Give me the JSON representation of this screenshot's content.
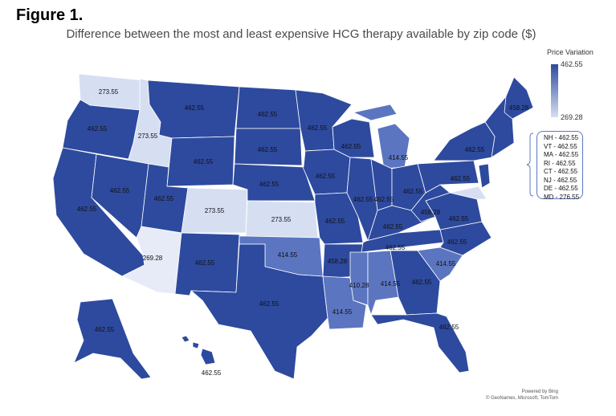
{
  "figure_label": "Figure 1.",
  "title": "Difference between the most and least expensive HCG therapy available by zip code ($)",
  "legend": {
    "title": "Price Variation",
    "max_label": "462.55",
    "min_label": "269.28",
    "color_max": "#2e4a9e",
    "color_mid": "#5b75c0",
    "color_min": "#d6def2"
  },
  "northeast_callouts": [
    "NH - 462.55",
    "VT - 462.55",
    "MA - 462.55",
    "RI - 462.55",
    "CT - 462.55",
    "NJ - 462.55",
    "DE - 462.55",
    "MD - 276.55"
  ],
  "states": [
    {
      "abbr": "WA",
      "value": 273.55,
      "label": "273.55"
    },
    {
      "abbr": "OR",
      "value": 462.55,
      "label": "462.55"
    },
    {
      "abbr": "CA",
      "value": 462.55,
      "label": "462.55"
    },
    {
      "abbr": "ID",
      "value": 273.55,
      "label": "273.55"
    },
    {
      "abbr": "NV",
      "value": 462.55,
      "label": "462.55"
    },
    {
      "abbr": "UT",
      "value": 462.55,
      "label": "462.55"
    },
    {
      "abbr": "AZ",
      "value": 269.28,
      "label": "269.28"
    },
    {
      "abbr": "MT",
      "value": 462.55,
      "label": "462.55"
    },
    {
      "abbr": "WY",
      "value": 462.55,
      "label": "462.55"
    },
    {
      "abbr": "CO",
      "value": 273.55,
      "label": "273.55"
    },
    {
      "abbr": "NM",
      "value": 462.55,
      "label": "462.55"
    },
    {
      "abbr": "ND",
      "value": 462.55,
      "label": "462.55"
    },
    {
      "abbr": "SD",
      "value": 462.55,
      "label": "462.55"
    },
    {
      "abbr": "NE",
      "value": 462.55,
      "label": "462.55"
    },
    {
      "abbr": "KS",
      "value": 273.55,
      "label": "273.55"
    },
    {
      "abbr": "OK",
      "value": 414.55,
      "label": "414.55"
    },
    {
      "abbr": "TX",
      "value": 462.55,
      "label": "462.55"
    },
    {
      "abbr": "MN",
      "value": 462.55,
      "label": "462.55"
    },
    {
      "abbr": "IA",
      "value": 462.55,
      "label": "462.55"
    },
    {
      "abbr": "MO",
      "value": 462.55,
      "label": "462.55"
    },
    {
      "abbr": "AR",
      "value": 458.28,
      "label": "458.28"
    },
    {
      "abbr": "LA",
      "value": 414.55,
      "label": "414.55"
    },
    {
      "abbr": "WI",
      "value": 462.55,
      "label": "462.55"
    },
    {
      "abbr": "IL",
      "value": 462.55,
      "label": "462.55"
    },
    {
      "abbr": "MI",
      "value": 414.55,
      "label": "414.55"
    },
    {
      "abbr": "IN",
      "value": 462.55,
      "label": "462.55"
    },
    {
      "abbr": "OH",
      "value": 462.55,
      "label": "462.55"
    },
    {
      "abbr": "KY",
      "value": 462.55,
      "label": "462.55"
    },
    {
      "abbr": "TN",
      "value": 462.55,
      "label": "462.55"
    },
    {
      "abbr": "MS",
      "value": 410.28,
      "label": "410.28"
    },
    {
      "abbr": "AL",
      "value": 414.55,
      "label": "414.55"
    },
    {
      "abbr": "GA",
      "value": 462.55,
      "label": "462.55"
    },
    {
      "abbr": "FL",
      "value": 462.55,
      "label": "462.55"
    },
    {
      "abbr": "SC",
      "value": 414.55,
      "label": "414.55"
    },
    {
      "abbr": "NC",
      "value": 462.55,
      "label": "462.55"
    },
    {
      "abbr": "VA",
      "value": 462.55,
      "label": "462.55"
    },
    {
      "abbr": "WV",
      "value": 458.28,
      "label": "458.28"
    },
    {
      "abbr": "PA",
      "value": 462.55,
      "label": "462.55"
    },
    {
      "abbr": "NY",
      "value": 462.55,
      "label": "462.55"
    },
    {
      "abbr": "ME",
      "value": 458.28,
      "label": "458.28"
    },
    {
      "abbr": "AK",
      "value": 462.55,
      "label": "462.55"
    },
    {
      "abbr": "HI",
      "value": 462.55,
      "label": "462.55"
    }
  ],
  "credits": [
    "Powered by Bing",
    "© GeoNames, Microsoft, TomTom"
  ]
}
